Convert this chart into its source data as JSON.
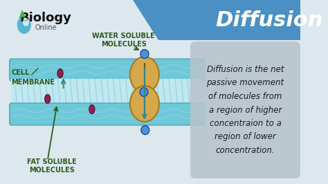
{
  "title": "Diffusion",
  "bg_color": "#dde8ee",
  "header_color": "#4a90c4",
  "cell_membrane_label": "CELL\nMEMBRANE",
  "water_soluble_label": "WATER SOLUBLE\nMOLECULES",
  "fat_soluble_label": "FAT SOLUBLE\nMOLECULES",
  "definition_text": "Diffusion is the net\npassive movement\nof molecules from\na region of higher\nconcentraion to a\nregion of lower\nconcentration.",
  "protein_color": "#d4a84b",
  "molecule_blue": "#4a90d9",
  "molecule_red": "#8b2252",
  "arrow_color": "#90c040",
  "label_color": "#2d5a1e",
  "definition_bg": "#b8c4cc",
  "text_color_dark": "#1a1a1a"
}
